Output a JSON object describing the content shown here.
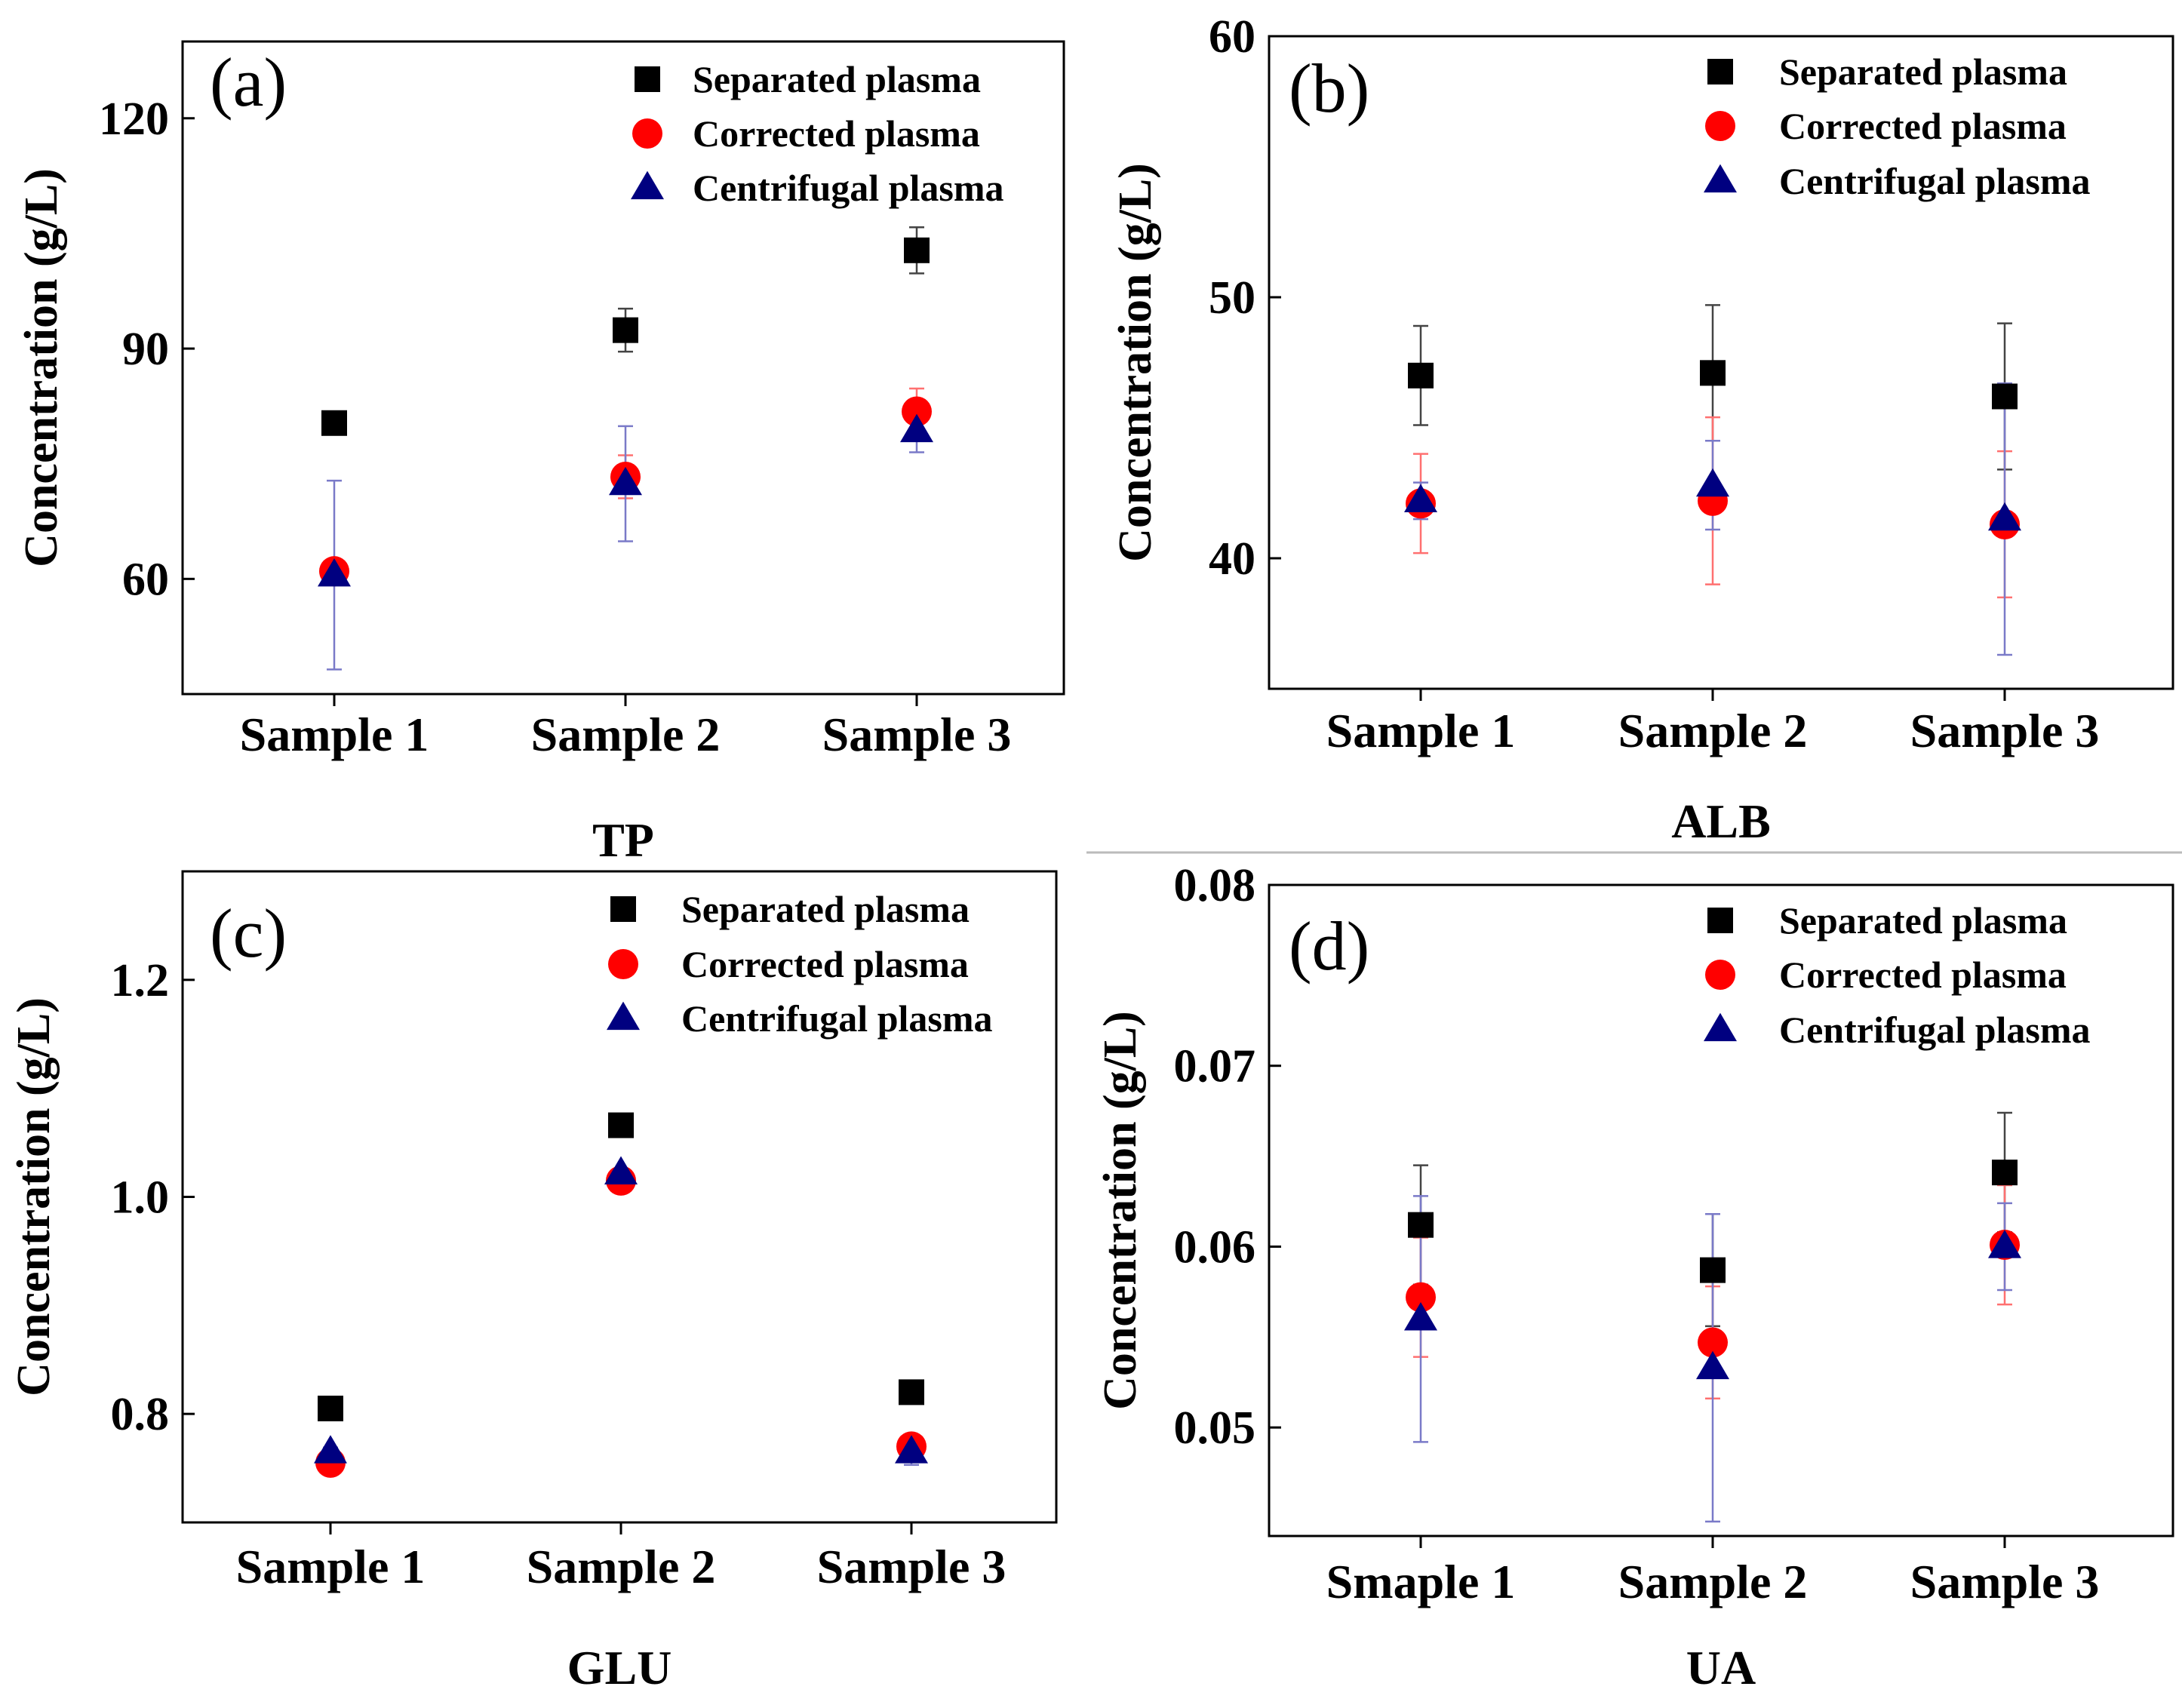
{
  "chart_data": [
    {
      "type": "scatter",
      "panel_label": "(a)",
      "xlabel": "TP",
      "ylabel": "Concentration (g/L)",
      "categories": [
        "Sample 1",
        "Sample 2",
        "Sample 3"
      ],
      "ylim": [
        45,
        130
      ],
      "yticks": [
        60,
        90,
        120
      ],
      "legend_position": "top-right",
      "series": [
        {
          "name": "Separated plasma",
          "marker": "square",
          "color": "#000000",
          "values": [
            80.3,
            92.4,
            102.8
          ],
          "errors": [
            0.8,
            2.8,
            3.0
          ]
        },
        {
          "name": "Corrected plasma",
          "marker": "circle",
          "color": "#ff0000",
          "values": [
            61.0,
            73.3,
            81.8
          ],
          "errors": [
            0.8,
            2.8,
            3.0
          ]
        },
        {
          "name": "Centrifugal plasma",
          "marker": "triangle",
          "color": "#000080",
          "values": [
            60.5,
            72.4,
            79.3
          ],
          "errors": [
            12.3,
            7.5,
            2.8
          ]
        }
      ]
    },
    {
      "type": "scatter",
      "panel_label": "(b)",
      "xlabel": "ALB",
      "ylabel": "Concentration (g/L)",
      "categories": [
        "Sample 1",
        "Sample 2",
        "Sample 3"
      ],
      "ylim": [
        35,
        60
      ],
      "yticks": [
        40,
        50,
        60
      ],
      "legend_position": "top-right",
      "series": [
        {
          "name": "Separated plasma",
          "marker": "square",
          "color": "#000000",
          "values": [
            47.0,
            47.1,
            46.2
          ],
          "errors": [
            1.9,
            2.6,
            2.8
          ]
        },
        {
          "name": "Corrected plasma",
          "marker": "circle",
          "color": "#ff0000",
          "values": [
            42.1,
            42.2,
            41.3
          ],
          "errors": [
            1.9,
            3.2,
            2.8
          ]
        },
        {
          "name": "Centrifugal plasma",
          "marker": "triangle",
          "color": "#000080",
          "values": [
            42.2,
            42.8,
            41.5
          ],
          "errors": [
            0.7,
            1.7,
            5.2
          ]
        }
      ]
    },
    {
      "type": "scatter",
      "panel_label": "(c)",
      "xlabel": "GLU",
      "ylabel": "Concentration (g/L)",
      "categories": [
        "Sample 1",
        "Sample 2",
        "Sample 3"
      ],
      "ylim": [
        0.7,
        1.3
      ],
      "yticks": [
        0.8,
        1.0,
        1.2
      ],
      "legend_position": "top-right",
      "series": [
        {
          "name": "Separated plasma",
          "marker": "square",
          "color": "#000000",
          "values": [
            0.805,
            1.066,
            0.82
          ],
          "errors": [
            0.004,
            0.004,
            0.006
          ]
        },
        {
          "name": "Corrected  plasma",
          "marker": "circle",
          "color": "#ff0000",
          "values": [
            0.755,
            1.015,
            0.77
          ],
          "errors": [
            0.004,
            0.004,
            0.006
          ]
        },
        {
          "name": "Centrifugal plasma",
          "marker": "triangle",
          "color": "#000080",
          "values": [
            0.765,
            1.022,
            0.765
          ],
          "errors": [
            0.004,
            0.004,
            0.012
          ]
        }
      ]
    },
    {
      "type": "scatter",
      "panel_label": "(d)",
      "xlabel": "UA",
      "ylabel": "Concentration (g/L)",
      "categories": [
        "Smaple 1",
        "Sample 2",
        "Sample 3"
      ],
      "ylim": [
        0.044,
        0.08
      ],
      "yticks": [
        0.05,
        0.06,
        0.07,
        0.08
      ],
      "legend_position": "top-right",
      "series": [
        {
          "name": "Separated plasma",
          "marker": "square",
          "color": "#000000",
          "values": [
            0.0612,
            0.0587,
            0.0641
          ],
          "errors": [
            0.0033,
            0.0031,
            0.0033
          ]
        },
        {
          "name": "Corrected plasma",
          "marker": "circle",
          "color": "#ff0000",
          "values": [
            0.0572,
            0.0547,
            0.0601
          ],
          "errors": [
            0.0033,
            0.0031,
            0.0033
          ]
        },
        {
          "name": "Centrifugal plasma",
          "marker": "triangle",
          "color": "#000080",
          "values": [
            0.056,
            0.0533,
            0.06
          ],
          "errors": [
            0.0068,
            0.0085,
            0.0024
          ]
        }
      ]
    }
  ]
}
